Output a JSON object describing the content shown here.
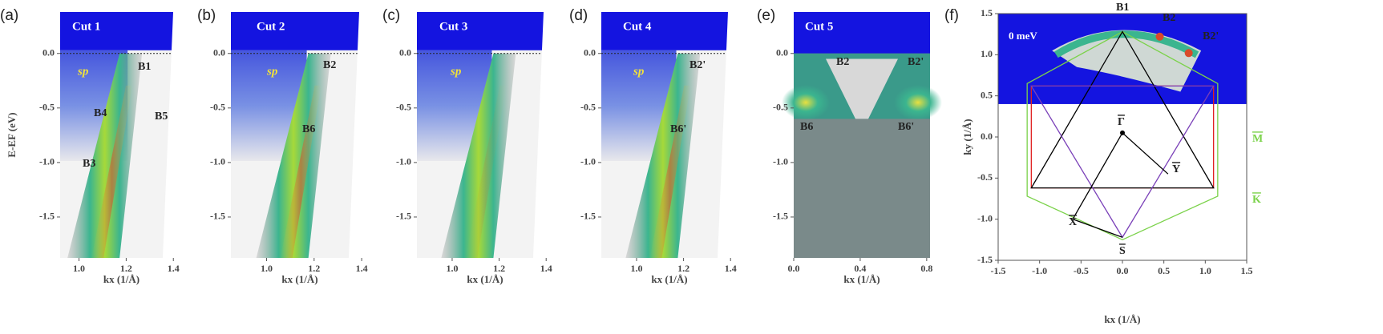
{
  "panels": [
    {
      "letter": "(a)",
      "title": "Cut 1",
      "xlabel": "kx (1/Å)",
      "ylabel": "E-EF (eV)",
      "xlim": [
        0.92,
        1.44
      ],
      "ylim": [
        -1.875,
        0.38
      ],
      "xticks": [
        {
          "value": 1,
          "label": "1.0"
        },
        1.2,
        1.4
      ],
      "yticks": [
        {
          "value": 0,
          "label": "0.0"
        },
        -0.5,
        {
          "value": -1,
          "label": "-1.0"
        },
        -1.5
      ],
      "annotations": [
        "sp",
        "B1",
        "B4",
        "B5",
        "B3"
      ]
    },
    {
      "letter": "(b)",
      "title": "Cut 2",
      "xlabel": "kx (1/Å)",
      "xlim": [
        0.85,
        1.43
      ],
      "ylim": [
        -1.875,
        0.38
      ],
      "xticks": [
        {
          "value": 1,
          "label": "1.0"
        },
        1.2,
        1.4
      ],
      "yticks": [
        {
          "value": 0,
          "label": "0.0"
        },
        -0.5,
        {
          "value": -1,
          "label": "-1.0"
        },
        -1.5
      ],
      "annotations": [
        "sp",
        "B2",
        "B6"
      ]
    },
    {
      "letter": "(c)",
      "title": "Cut 3",
      "xlabel": "kx (1/Å)",
      "xlim": [
        0.85,
        1.43
      ],
      "ylim": [
        -1.875,
        0.38
      ],
      "xticks": [
        {
          "value": 1,
          "label": "1.0"
        },
        1.2,
        1.4
      ],
      "yticks": [
        {
          "value": 0,
          "label": "0.0"
        },
        -0.5,
        {
          "value": -1,
          "label": "-1.0"
        },
        -1.5
      ],
      "annotations": [
        "sp"
      ]
    },
    {
      "letter": "(d)",
      "title": "Cut 4",
      "xlabel": "kx (1/Å)",
      "xlim": [
        0.85,
        1.43
      ],
      "ylim": [
        -1.875,
        0.38
      ],
      "xticks": [
        {
          "value": 1,
          "label": "1.0"
        },
        1.2,
        1.4
      ],
      "yticks": [
        {
          "value": 0,
          "label": "0.0"
        },
        -0.5,
        {
          "value": -1,
          "label": "-1.0"
        },
        -1.5
      ],
      "annotations": [
        "sp",
        "B2'",
        "B6'"
      ]
    },
    {
      "letter": "(e)",
      "title": "Cut 5",
      "xlabel": "kx (1/Å)",
      "xlim": [
        0,
        0.82
      ],
      "ylim": [
        -1.875,
        0.38
      ],
      "xticks": [
        {
          "value": 0,
          "label": "0.0"
        },
        0.4,
        0.8
      ],
      "yticks": [
        {
          "value": 0,
          "label": "0.0"
        },
        -0.5,
        {
          "value": -1,
          "label": "-1.0"
        },
        -1.5
      ],
      "annotations": [
        "B2",
        "B2'",
        "B6",
        "B6'"
      ]
    },
    {
      "letter": "(f)",
      "title": "0 meV",
      "xlabel": "kx (1/Å)",
      "ylabel": "ky (1/Å)",
      "xlim": [
        -1.5,
        1.5
      ],
      "ylim": [
        -1.5,
        1.5
      ],
      "xticks": [
        -1.5,
        {
          "value": -1,
          "label": "-1.0"
        },
        -0.5,
        {
          "value": 0,
          "label": "0.0"
        },
        0.5,
        {
          "value": 1,
          "label": "1.0"
        },
        1.5
      ],
      "yticks": [
        -1.5,
        {
          "value": -1,
          "label": "-1.0"
        },
        -0.5,
        {
          "value": 0,
          "label": "0.0"
        },
        0.5,
        {
          "value": 1,
          "label": "1.0"
        },
        1.5
      ],
      "annotations": [
        "B1",
        "B2",
        "B2'",
        "Γ",
        "Y",
        "X",
        "S",
        "M",
        "K"
      ]
    }
  ]
}
